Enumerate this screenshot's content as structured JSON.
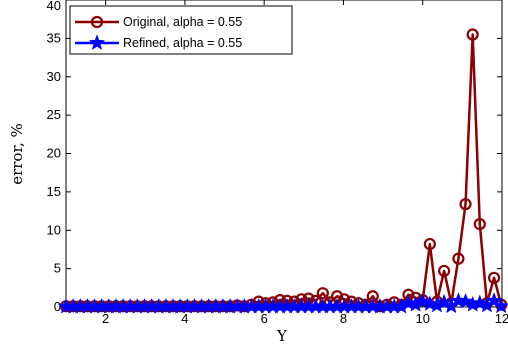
{
  "chart_data": {
    "type": "line",
    "xlabel": "Y",
    "ylabel": "error, %",
    "xlim": [
      1,
      12
    ],
    "ylim": [
      0,
      40
    ],
    "xticks": [
      2,
      4,
      6,
      8,
      10,
      12
    ],
    "yticks": [
      0,
      5,
      10,
      15,
      20,
      25,
      30,
      35,
      40
    ],
    "grid": false,
    "legend_position": "top-left",
    "series": [
      {
        "name": "Original, alpha = 0.55",
        "color": "#8b0000",
        "marker": "circle",
        "x": [
          1.0,
          1.18,
          1.36,
          1.54,
          1.72,
          1.9,
          2.08,
          2.26,
          2.44,
          2.62,
          2.8,
          2.98,
          3.16,
          3.34,
          3.52,
          3.7,
          3.88,
          4.06,
          4.24,
          4.42,
          4.6,
          4.78,
          4.96,
          5.14,
          5.32,
          5.5,
          5.68,
          5.86,
          6.04,
          6.22,
          6.4,
          6.58,
          6.76,
          6.94,
          7.12,
          7.3,
          7.48,
          7.66,
          7.84,
          8.02,
          8.2,
          8.38,
          8.56,
          8.74,
          8.92,
          9.1,
          9.28,
          9.46,
          9.64,
          9.82,
          10.0,
          10.18,
          10.36,
          10.54,
          10.72,
          10.9,
          11.08,
          11.26,
          11.44,
          11.62,
          11.8,
          11.98
        ],
        "y": [
          0.1,
          0.1,
          0.1,
          0.1,
          0.1,
          0.1,
          0.1,
          0.1,
          0.1,
          0.1,
          0.1,
          0.1,
          0.1,
          0.1,
          0.1,
          0.1,
          0.1,
          0.1,
          0.1,
          0.1,
          0.1,
          0.1,
          0.1,
          0.1,
          0.2,
          0.1,
          0.3,
          0.7,
          0.5,
          0.6,
          0.9,
          0.8,
          0.7,
          1.0,
          1.1,
          0.8,
          1.8,
          0.6,
          1.4,
          1.0,
          0.7,
          0.5,
          0.3,
          1.4,
          0.1,
          0.3,
          0.6,
          0.3,
          1.6,
          1.2,
          0.9,
          8.2,
          0.7,
          4.7,
          0.5,
          6.3,
          13.4,
          35.5,
          10.8,
          0.5,
          3.8,
          0.3
        ]
      },
      {
        "name": "Refined, alpha = 0.55",
        "color": "#0000ff",
        "marker": "star",
        "x": [
          1.0,
          1.18,
          1.36,
          1.54,
          1.72,
          1.9,
          2.08,
          2.26,
          2.44,
          2.62,
          2.8,
          2.98,
          3.16,
          3.34,
          3.52,
          3.7,
          3.88,
          4.06,
          4.24,
          4.42,
          4.6,
          4.78,
          4.96,
          5.14,
          5.32,
          5.5,
          5.68,
          5.86,
          6.04,
          6.22,
          6.4,
          6.58,
          6.76,
          6.94,
          7.12,
          7.3,
          7.48,
          7.66,
          7.84,
          8.02,
          8.2,
          8.38,
          8.56,
          8.74,
          8.92,
          9.1,
          9.28,
          9.46,
          9.64,
          9.82,
          10.0,
          10.18,
          10.36,
          10.54,
          10.72,
          10.9,
          11.08,
          11.26,
          11.44,
          11.62,
          11.8,
          11.98
        ],
        "y": [
          0.05,
          0.05,
          0.05,
          0.05,
          0.05,
          0.05,
          0.05,
          0.05,
          0.05,
          0.05,
          0.05,
          0.05,
          0.05,
          0.05,
          0.05,
          0.05,
          0.05,
          0.05,
          0.05,
          0.05,
          0.05,
          0.05,
          0.05,
          0.05,
          0.05,
          0.05,
          0.05,
          0.05,
          0.05,
          0.05,
          0.05,
          0.05,
          0.05,
          0.05,
          0.05,
          0.05,
          0.05,
          0.05,
          0.05,
          0.05,
          0.05,
          0.05,
          0.05,
          0.05,
          0.05,
          0.05,
          0.05,
          0.05,
          0.5,
          0.3,
          0.7,
          0.4,
          0.2,
          0.6,
          0.1,
          0.8,
          0.7,
          0.3,
          0.5,
          0.2,
          0.8,
          0.1
        ]
      }
    ]
  }
}
